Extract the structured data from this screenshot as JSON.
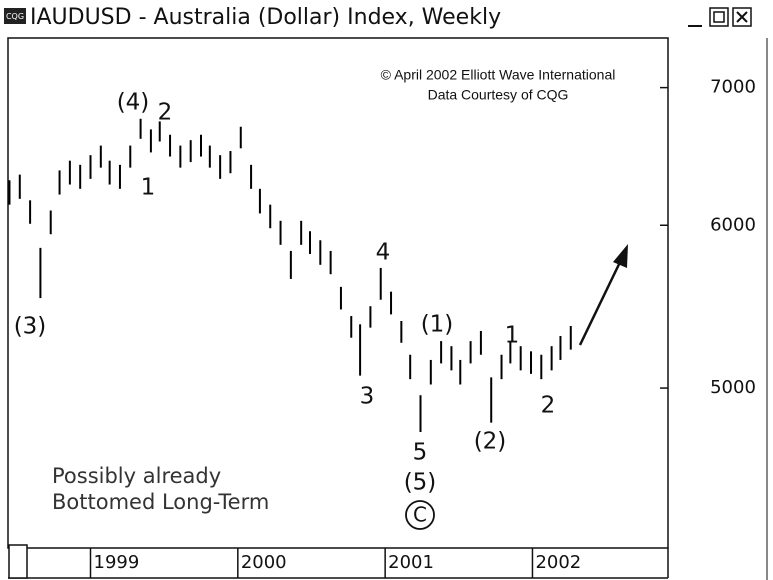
{
  "window": {
    "icon_text": "CQG",
    "title": "IAUDUSD - Australia (Dollar) Index, Weekly"
  },
  "chart_data": {
    "type": "range_bar",
    "annotations": [
      "(4)",
      "2",
      "1",
      "(3)",
      "4",
      "3",
      "(1)",
      "5",
      "(5)",
      "C",
      "(2)",
      "1",
      "2"
    ],
    "credits": [
      "© April 2002 Elliott Wave International",
      "Data Courtesy of CQG"
    ],
    "note": [
      "Possibly already",
      "Bottomed Long-Term"
    ],
    "color": "#000000",
    "log_scale": true,
    "xlim": [
      1998.44,
      2002.92
    ],
    "xticks": [
      1999,
      2000,
      2001,
      2002
    ],
    "ylim": [
      4180,
      7400
    ],
    "yticks": [
      5000,
      6000,
      7000
    ],
    "x": [
      1998.45,
      1998.52,
      1998.59,
      1998.66,
      1998.73,
      1998.79,
      1998.86,
      1998.93,
      1999.0,
      1999.07,
      1999.13,
      1999.2,
      1999.27,
      1999.34,
      1999.41,
      1999.47,
      1999.54,
      1999.61,
      1999.68,
      1999.75,
      1999.81,
      1999.88,
      1999.95,
      2000.02,
      2000.09,
      2000.15,
      2000.22,
      2000.29,
      2000.36,
      2000.43,
      2000.49,
      2000.56,
      2000.63,
      2000.7,
      2000.77,
      2000.83,
      2000.9,
      2000.97,
      2001.04,
      2001.11,
      2001.17,
      2001.24,
      2001.31,
      2001.38,
      2001.45,
      2001.51,
      2001.58,
      2001.65,
      2001.72,
      2001.79,
      2001.85,
      2001.92,
      2001.99,
      2002.06,
      2002.13,
      2002.19,
      2002.26
    ],
    "high": [
      6310,
      6350,
      6170,
      5850,
      6100,
      6380,
      6450,
      6420,
      6490,
      6560,
      6450,
      6420,
      6560,
      6760,
      6680,
      6740,
      6640,
      6560,
      6600,
      6640,
      6560,
      6490,
      6520,
      6700,
      6420,
      6250,
      6140,
      6030,
      5830,
      6030,
      5960,
      5900,
      5830,
      5600,
      5420,
      5370,
      5480,
      5720,
      5570,
      5390,
      5190,
      4960,
      5160,
      5270,
      5240,
      5160,
      5270,
      5330,
      5060,
      5190,
      5270,
      5240,
      5210,
      5190,
      5240,
      5300,
      5360
    ],
    "low": [
      6140,
      6180,
      6010,
      5530,
      5940,
      6210,
      6280,
      6250,
      6320,
      6400,
      6280,
      6250,
      6400,
      6610,
      6510,
      6590,
      6480,
      6400,
      6440,
      6480,
      6400,
      6320,
      6360,
      6540,
      6250,
      6080,
      5980,
      5870,
      5650,
      5870,
      5810,
      5740,
      5680,
      5460,
      5290,
      5070,
      5350,
      5520,
      5430,
      5260,
      5050,
      4760,
      5020,
      5140,
      5100,
      5020,
      5140,
      5190,
      4810,
      5050,
      5140,
      5100,
      5080,
      5050,
      5100,
      5160,
      5220
    ]
  }
}
